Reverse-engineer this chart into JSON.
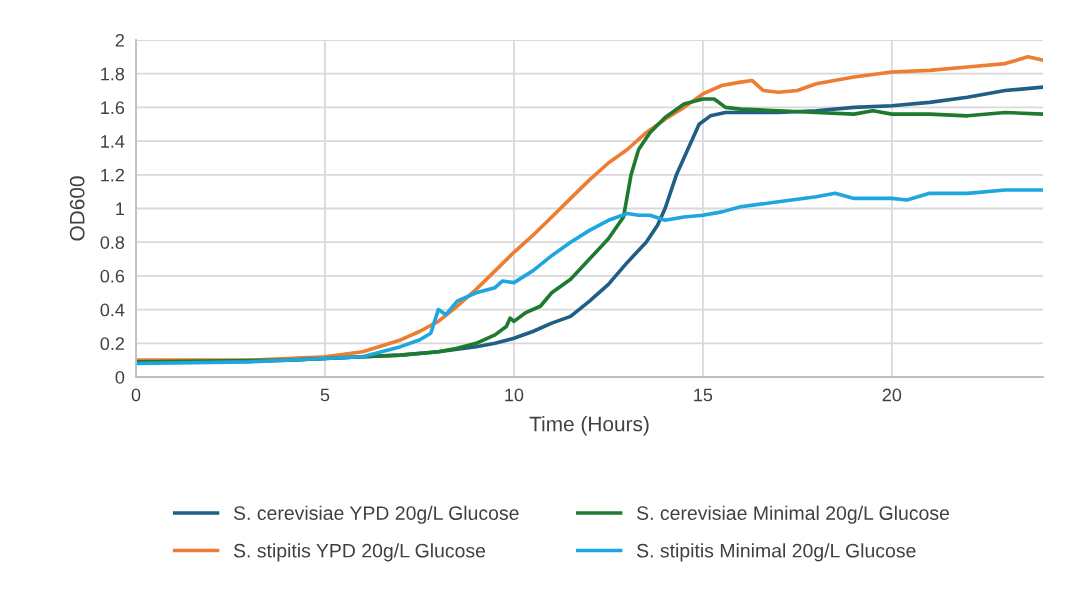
{
  "chart_data": {
    "type": "line",
    "xlabel": "Time (Hours)",
    "ylabel": "OD600",
    "xlim": [
      0,
      24
    ],
    "xticks": [
      0,
      5,
      10,
      15,
      20
    ],
    "ylim": [
      0,
      2
    ],
    "yticks": [
      0,
      {
        "value": 0.2,
        "label": "0.2"
      },
      {
        "value": 0.4,
        "label": "0.4"
      },
      {
        "value": 0.6,
        "label": "0.6"
      },
      {
        "value": 0.8,
        "label": "0.8"
      },
      1,
      {
        "value": 1.2,
        "label": "1.2"
      },
      {
        "value": 1.4,
        "label": "1.4"
      },
      {
        "value": 1.6,
        "label": "1.6"
      },
      {
        "value": 1.8,
        "label": "1.8"
      },
      2
    ],
    "grid": true,
    "legend": "bottom",
    "marker": "none",
    "line_style": "solid",
    "series": [
      {
        "name": "S. cerevisiae YPD 20g/L Glucose",
        "color": "#1f5f85",
        "x": [
          0,
          2,
          4,
          5,
          6,
          7,
          8,
          9,
          9.5,
          10,
          10.5,
          11,
          11.5,
          12,
          12.5,
          13,
          13.5,
          13.8,
          14,
          14.3,
          14.6,
          14.9,
          15.2,
          15.6,
          16,
          17,
          18,
          19,
          20,
          21,
          22,
          23,
          24
        ],
        "values": [
          0.09,
          0.09,
          0.1,
          0.11,
          0.12,
          0.13,
          0.15,
          0.18,
          0.2,
          0.23,
          0.27,
          0.32,
          0.36,
          0.45,
          0.55,
          0.68,
          0.8,
          0.9,
          1.0,
          1.2,
          1.35,
          1.5,
          1.55,
          1.57,
          1.57,
          1.57,
          1.58,
          1.6,
          1.61,
          1.63,
          1.66,
          1.7,
          1.72
        ]
      },
      {
        "name": "S. stipitis YPD 20g/L Glucose",
        "color": "#ed7d31",
        "x": [
          0,
          3,
          5,
          6,
          7,
          7.5,
          8,
          8.5,
          9,
          9.5,
          10,
          10.5,
          11,
          11.5,
          12,
          12.5,
          13,
          13.5,
          14,
          14.5,
          15,
          15.5,
          16,
          16.3,
          16.6,
          17,
          17.5,
          18,
          19,
          20,
          21,
          22,
          23,
          23.6,
          24
        ],
        "values": [
          0.1,
          0.1,
          0.12,
          0.15,
          0.22,
          0.27,
          0.33,
          0.42,
          0.52,
          0.63,
          0.74,
          0.84,
          0.95,
          1.06,
          1.17,
          1.27,
          1.35,
          1.45,
          1.53,
          1.6,
          1.68,
          1.73,
          1.75,
          1.76,
          1.7,
          1.69,
          1.7,
          1.74,
          1.78,
          1.81,
          1.82,
          1.84,
          1.86,
          1.9,
          1.88
        ]
      },
      {
        "name": "S. cerevisiae Minimal 20g/L Glucose",
        "color": "#1e7a2e",
        "x": [
          0,
          4,
          5,
          6,
          7,
          8,
          8.5,
          9,
          9.5,
          9.8,
          9.9,
          10,
          10.3,
          10.7,
          11,
          11.5,
          12,
          12.5,
          12.9,
          13.1,
          13.3,
          13.6,
          14,
          14.5,
          15,
          15.3,
          15.6,
          16,
          17,
          18,
          19,
          19.5,
          20,
          21,
          22,
          23,
          24
        ],
        "values": [
          0.09,
          0.1,
          0.11,
          0.12,
          0.13,
          0.15,
          0.17,
          0.2,
          0.25,
          0.3,
          0.35,
          0.33,
          0.38,
          0.42,
          0.5,
          0.58,
          0.7,
          0.82,
          0.95,
          1.2,
          1.35,
          1.45,
          1.54,
          1.62,
          1.65,
          1.65,
          1.6,
          1.59,
          1.58,
          1.57,
          1.56,
          1.58,
          1.56,
          1.56,
          1.55,
          1.57,
          1.56
        ]
      },
      {
        "name": "S. stipitis Minimal 20g/L Glucose",
        "color": "#1ea6df",
        "x": [
          0,
          3,
          5,
          6,
          7,
          7.5,
          7.8,
          8,
          8.2,
          8.5,
          9,
          9.5,
          9.7,
          10,
          10.5,
          11,
          11.5,
          12,
          12.5,
          13,
          13.3,
          13.6,
          14,
          14.5,
          15,
          15.5,
          16,
          17,
          18,
          18.5,
          19,
          20,
          20.4,
          21,
          22,
          23,
          24
        ],
        "values": [
          0.08,
          0.09,
          0.11,
          0.12,
          0.18,
          0.22,
          0.26,
          0.4,
          0.37,
          0.45,
          0.5,
          0.53,
          0.57,
          0.56,
          0.63,
          0.72,
          0.8,
          0.87,
          0.93,
          0.97,
          0.96,
          0.96,
          0.93,
          0.95,
          0.96,
          0.98,
          1.01,
          1.04,
          1.07,
          1.09,
          1.06,
          1.06,
          1.05,
          1.09,
          1.09,
          1.11,
          1.11
        ]
      }
    ]
  }
}
